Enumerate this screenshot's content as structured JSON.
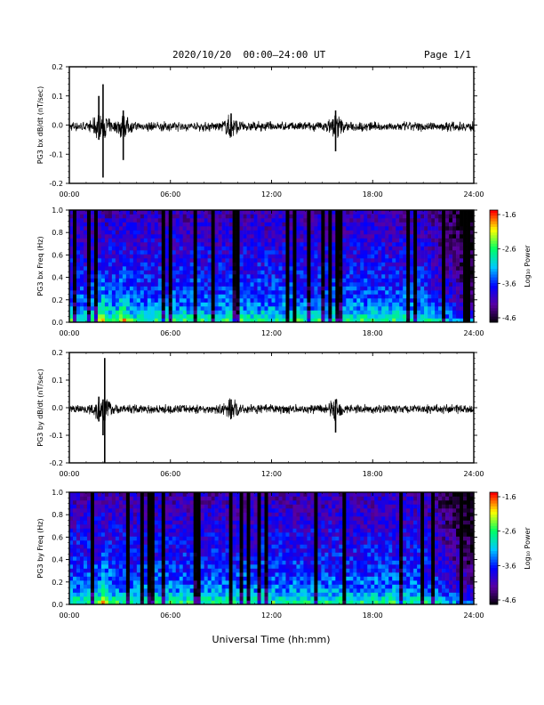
{
  "header": {
    "title": "2020/10/20  00:00–24:00 UT",
    "page": "Page 1/1"
  },
  "xaxis": {
    "ticks": [
      "00:00",
      "06:00",
      "12:00",
      "18:00",
      "24:00"
    ],
    "label": "Universal Time (hh:mm)"
  },
  "colorbar": {
    "label": "Log₁₀ Power",
    "ticks": [
      "-1.6",
      "-2.6",
      "-3.6",
      "-4.6"
    ]
  },
  "chart_data": [
    {
      "type": "line",
      "ylabel": "PG3 bx dB/dt (nT/sec)",
      "xlim": [
        0,
        24
      ],
      "ylim": [
        -0.2,
        0.2
      ],
      "yticks": [
        "0.2",
        "0.1",
        "0.0",
        "-0.1",
        "-0.2"
      ],
      "color": "#000000",
      "noise_level": 0.012,
      "events": [
        {
          "time": 1.75,
          "max": 0.1,
          "min": -0.05
        },
        {
          "time": 2.0,
          "max": 0.14,
          "min": -0.18
        },
        {
          "time": 3.2,
          "max": 0.05,
          "min": -0.12
        },
        {
          "time": 9.6,
          "max": 0.04,
          "min": -0.04
        },
        {
          "time": 15.8,
          "max": 0.05,
          "min": -0.09
        }
      ]
    },
    {
      "type": "heatmap",
      "ylabel": "PG3 bx Freq (Hz)",
      "xlim": [
        0,
        24
      ],
      "ylim": [
        0,
        1.0
      ],
      "yticks": [
        "1.0",
        "0.8",
        "0.6",
        "0.4",
        "0.2",
        "0.0"
      ],
      "zlim": [
        -4.6,
        -1.6
      ],
      "colormap": [
        "#000000",
        "#5a00a0",
        "#0000ff",
        "#00c8ff",
        "#00ff64",
        "#ffff00",
        "#ff0000"
      ],
      "hot_times": [
        2.0,
        3.2
      ]
    },
    {
      "type": "line",
      "ylabel": "PG3 by dB/dt (nT/sec)",
      "xlim": [
        0,
        24
      ],
      "ylim": [
        -0.2,
        0.2
      ],
      "yticks": [
        "0.2",
        "0.1",
        "0.0",
        "-0.1",
        "-0.2"
      ],
      "color": "#000000",
      "noise_level": 0.012,
      "events": [
        {
          "time": 1.75,
          "max": 0.04,
          "min": -0.05
        },
        {
          "time": 2.1,
          "max": 0.18,
          "min": -0.2
        },
        {
          "time": 2.0,
          "max": 0.03,
          "min": -0.1
        },
        {
          "time": 9.6,
          "max": 0.03,
          "min": -0.04
        },
        {
          "time": 15.8,
          "max": 0.03,
          "min": -0.09
        }
      ]
    },
    {
      "type": "heatmap",
      "ylabel": "PG3 by Freq (Hz)",
      "xlim": [
        0,
        24
      ],
      "ylim": [
        0,
        1.0
      ],
      "yticks": [
        "1.0",
        "0.8",
        "0.6",
        "0.4",
        "0.2",
        "0.0"
      ],
      "zlim": [
        -4.6,
        -1.6
      ],
      "colormap": [
        "#000000",
        "#5a00a0",
        "#0000ff",
        "#00c8ff",
        "#00ff64",
        "#ffff00",
        "#ff0000"
      ],
      "hot_times": [
        2.1
      ]
    }
  ]
}
